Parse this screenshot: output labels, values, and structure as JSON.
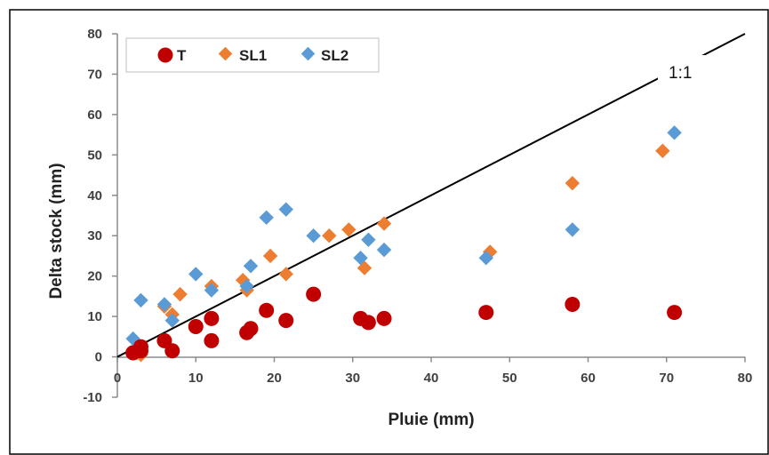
{
  "colors": {
    "T": "#c00000",
    "SL1": "#ed7d31",
    "SL2": "#5b9bd5",
    "line": "#000000"
  },
  "chart_data": {
    "type": "scatter",
    "xlabel": "Pluie (mm)",
    "ylabel": "Delta stock (mm)",
    "xlim": [
      0,
      80
    ],
    "ylim": [
      -10,
      80
    ],
    "xticks": [
      "0",
      "10",
      "20",
      "30",
      "40",
      "50",
      "60",
      "70",
      "80"
    ],
    "yticks": [
      "-10",
      "0",
      "10",
      "20",
      "30",
      "40",
      "50",
      "60",
      "70",
      "80"
    ],
    "grid": false,
    "legend_position": "top-left",
    "annotation": "1:1",
    "reference_line": {
      "from": [
        0,
        0
      ],
      "to": [
        80,
        80
      ]
    },
    "series": [
      {
        "name": "T",
        "marker": "circle",
        "color": "#c00000",
        "points": [
          [
            2,
            1
          ],
          [
            3,
            1.5
          ],
          [
            3,
            2.5
          ],
          [
            6,
            4
          ],
          [
            7,
            1.5
          ],
          [
            10,
            7.5
          ],
          [
            12,
            9.5
          ],
          [
            12,
            4
          ],
          [
            16.5,
            6
          ],
          [
            17,
            7
          ],
          [
            19,
            11.5
          ],
          [
            21.5,
            9
          ],
          [
            25,
            15.5
          ],
          [
            31,
            9.5
          ],
          [
            32,
            8.5
          ],
          [
            34,
            9.5
          ],
          [
            47,
            11
          ],
          [
            58,
            13
          ],
          [
            71,
            11
          ]
        ]
      },
      {
        "name": "SL1",
        "marker": "diamond",
        "color": "#ed7d31",
        "points": [
          [
            2.5,
            1
          ],
          [
            3,
            0.5
          ],
          [
            6,
            12.5
          ],
          [
            7,
            10.5
          ],
          [
            8,
            15.5
          ],
          [
            12,
            17.5
          ],
          [
            16,
            19
          ],
          [
            16.5,
            16.5
          ],
          [
            19.5,
            25
          ],
          [
            21.5,
            20.5
          ],
          [
            27,
            30
          ],
          [
            29.5,
            31.5
          ],
          [
            31.5,
            22
          ],
          [
            34,
            33
          ],
          [
            47.5,
            26
          ],
          [
            58,
            43
          ],
          [
            69.5,
            51
          ]
        ]
      },
      {
        "name": "SL2",
        "marker": "diamond",
        "color": "#5b9bd5",
        "points": [
          [
            2,
            4.5
          ],
          [
            3,
            2.5
          ],
          [
            3,
            14
          ],
          [
            6,
            13
          ],
          [
            7,
            9
          ],
          [
            10,
            20.5
          ],
          [
            12,
            16.5
          ],
          [
            16.5,
            17.5
          ],
          [
            17,
            22.5
          ],
          [
            19,
            34.5
          ],
          [
            21.5,
            36.5
          ],
          [
            25,
            30
          ],
          [
            31,
            24.5
          ],
          [
            32,
            29
          ],
          [
            34,
            26.5
          ],
          [
            47,
            24.5
          ],
          [
            58,
            31.5
          ],
          [
            71,
            55.5
          ]
        ]
      }
    ]
  }
}
